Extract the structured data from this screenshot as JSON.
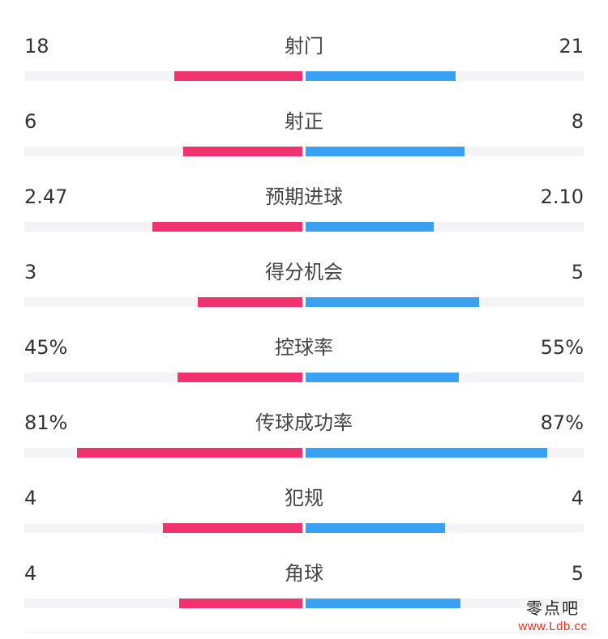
{
  "colors": {
    "home": "#f0336f",
    "away": "#3aa0f2",
    "track": "#f4f4f6"
  },
  "stats": [
    {
      "label": "射门",
      "home": "18",
      "away": "21",
      "home_fill": 0.46,
      "away_fill": 0.54
    },
    {
      "label": "射正",
      "home": "6",
      "away": "8",
      "home_fill": 0.43,
      "away_fill": 0.57
    },
    {
      "label": "预期进球",
      "home": "2.47",
      "away": "2.10",
      "home_fill": 0.54,
      "away_fill": 0.46
    },
    {
      "label": "得分机会",
      "home": "3",
      "away": "5",
      "home_fill": 0.375,
      "away_fill": 0.625
    },
    {
      "label": "控球率",
      "home": "45%",
      "away": "55%",
      "home_fill": 0.45,
      "away_fill": 0.55
    },
    {
      "label": "传球成功率",
      "home": "81%",
      "away": "87%",
      "home_fill": 0.81,
      "away_fill": 0.87
    },
    {
      "label": "犯规",
      "home": "4",
      "away": "4",
      "home_fill": 0.5,
      "away_fill": 0.5
    },
    {
      "label": "角球",
      "home": "4",
      "away": "5",
      "home_fill": 0.444,
      "away_fill": 0.556
    }
  ],
  "watermark": {
    "title": "零点吧",
    "url": "www.Ldb.cc"
  }
}
